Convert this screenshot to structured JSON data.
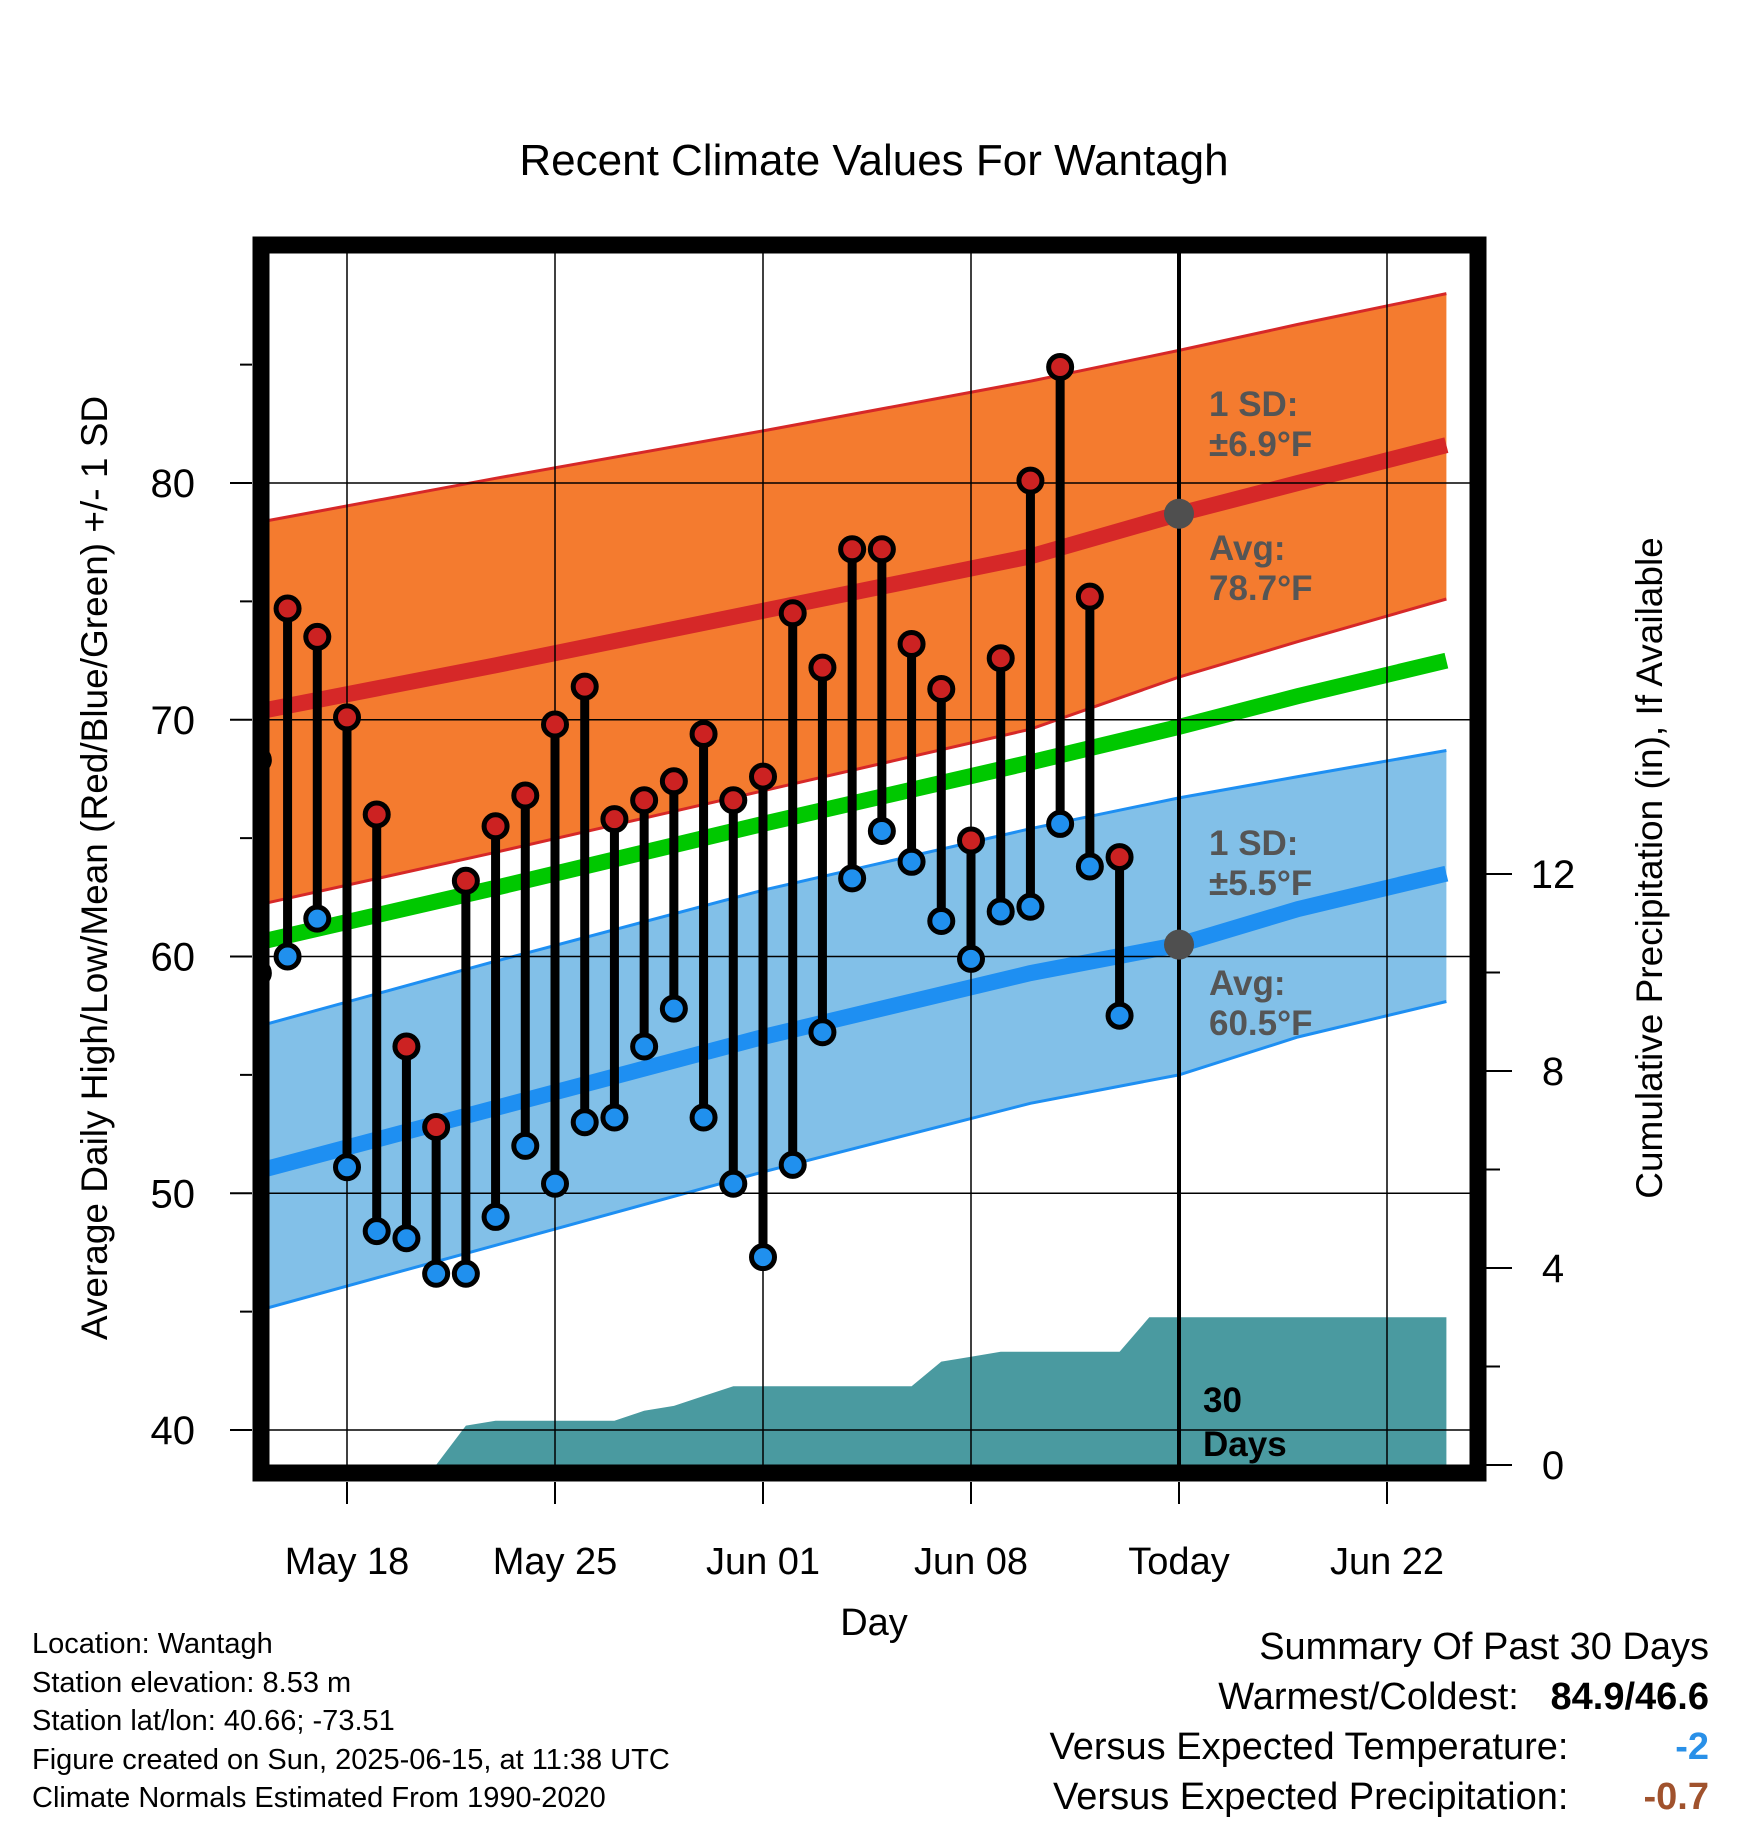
{
  "chart_data": {
    "type": "line",
    "title": "Recent Climate Values For Wantagh",
    "xlabel": "Day",
    "ylabel": "Average Daily High/Low/Mean (Red/Blue/Green) +/- 1 SD",
    "y2label": "Cumulative Precipitation (in), If Available",
    "ylim": [
      39,
      90
    ],
    "y2lim": [
      0,
      24
    ],
    "yticks": [
      "40",
      "50",
      "60",
      "70",
      "80"
    ],
    "y2ticks": [
      "0",
      "4",
      "8",
      "12"
    ],
    "xlim_days": [
      "2025-05-14",
      "2025-06-24"
    ],
    "xticks": [
      {
        "date": "2025-05-18",
        "label": "May 18"
      },
      {
        "date": "2025-05-25",
        "label": "May 25"
      },
      {
        "date": "2025-06-01",
        "label": "Jun 01"
      },
      {
        "date": "2025-06-08",
        "label": "Jun 08"
      },
      {
        "date": "2025-06-15",
        "label": "Today"
      },
      {
        "date": "2025-06-22",
        "label": "Jun 22"
      }
    ],
    "today": "2025-06-15",
    "normals": {
      "dates": [
        "2025-05-14",
        "2025-05-23",
        "2025-06-01",
        "2025-06-10",
        "2025-06-15",
        "2025-06-19",
        "2025-06-24"
      ],
      "avg_high": [
        70.1,
        72.3,
        74.6,
        76.9,
        78.7,
        80.0,
        81.6
      ],
      "avg_high_upper": [
        78.1,
        80.2,
        82.2,
        84.3,
        85.6,
        86.7,
        88.0
      ],
      "avg_high_lower": [
        61.9,
        64.4,
        67.0,
        69.6,
        71.8,
        73.3,
        75.1
      ],
      "avg_mean": [
        60.3,
        62.9,
        65.6,
        68.2,
        69.7,
        71.0,
        72.5
      ],
      "avg_low": [
        50.6,
        53.6,
        56.6,
        59.3,
        60.5,
        62.0,
        63.5
      ],
      "avg_low_upper": [
        56.7,
        59.8,
        62.8,
        65.4,
        66.7,
        67.6,
        68.7
      ],
      "avg_low_lower": [
        44.7,
        47.8,
        50.9,
        53.8,
        55.0,
        56.6,
        58.1
      ]
    },
    "observed": {
      "dates": [
        "2025-05-15",
        "2025-05-16",
        "2025-05-17",
        "2025-05-18",
        "2025-05-19",
        "2025-05-20",
        "2025-05-21",
        "2025-05-22",
        "2025-05-23",
        "2025-05-24",
        "2025-05-25",
        "2025-05-26",
        "2025-05-27",
        "2025-05-28",
        "2025-05-29",
        "2025-05-30",
        "2025-05-31",
        "2025-06-01",
        "2025-06-02",
        "2025-06-03",
        "2025-06-04",
        "2025-06-05",
        "2025-06-06",
        "2025-06-07",
        "2025-06-08",
        "2025-06-09",
        "2025-06-10",
        "2025-06-11",
        "2025-06-12",
        "2025-06-13",
        "2025-06-14"
      ],
      "high": [
        68.3,
        74.7,
        73.5,
        70.1,
        66.0,
        56.2,
        52.8,
        63.2,
        65.5,
        66.8,
        69.8,
        71.4,
        65.8,
        66.6,
        67.4,
        69.4,
        66.6,
        67.6,
        74.5,
        72.2,
        77.2,
        77.2,
        73.2,
        71.3,
        64.9,
        72.6,
        80.1,
        84.9,
        75.2,
        64.2,
        null
      ],
      "low": [
        59.3,
        60.0,
        61.6,
        51.1,
        48.4,
        48.1,
        46.6,
        46.6,
        49.0,
        52.0,
        50.4,
        53.0,
        53.2,
        56.2,
        57.8,
        53.2,
        50.4,
        47.3,
        51.2,
        56.8,
        63.3,
        65.3,
        64.0,
        61.5,
        59.9,
        61.9,
        62.1,
        65.6,
        63.8,
        57.5,
        null
      ]
    },
    "precip_cumulative": {
      "dates": [
        "2025-05-17",
        "2025-05-20",
        "2025-05-21",
        "2025-05-22",
        "2025-05-23",
        "2025-05-27",
        "2025-05-28",
        "2025-05-29",
        "2025-05-30",
        "2025-05-31",
        "2025-06-06",
        "2025-06-07",
        "2025-06-08",
        "2025-06-09",
        "2025-06-10",
        "2025-06-13",
        "2025-06-14",
        "2025-06-24"
      ],
      "values": [
        0,
        0,
        0,
        0.8,
        0.9,
        0.9,
        1.1,
        1.2,
        1.4,
        1.6,
        1.6,
        2.1,
        2.2,
        2.3,
        2.3,
        2.3,
        3.0,
        3.0
      ]
    },
    "annotations": {
      "high_sd_label": "1 SD:",
      "high_sd_value": "±6.9°F",
      "high_avg_label": "Avg:",
      "high_avg_value": "78.7°F",
      "low_sd_label": "1 SD:",
      "low_sd_value": "±5.5°F",
      "low_avg_label": "Avg:",
      "low_avg_value": "60.5°F",
      "days_label_1": "30",
      "days_label_2": "Days"
    },
    "colors": {
      "high_band": "#f47b2f",
      "high_line": "#d62828",
      "low_band": "#82c0e8",
      "low_line": "#1e8ff2",
      "mean_line": "#00c800",
      "precip": "#4a9aa0",
      "high_dot": "#cc2222",
      "low_dot": "#2090ee",
      "avg_dot": "#4f4f4f",
      "annotation": "#555555"
    }
  },
  "footer": {
    "location": "Location: Wantagh",
    "elevation": "Station elevation: 8.53 m",
    "latlon": "Station lat/lon: 40.66; -73.51",
    "created": "Figure created on Sun, 2025-06-15, at 11:38 UTC",
    "normals": "Climate Normals Estimated From 1990-2020"
  },
  "summary": {
    "heading": "Summary Of Past 30 Days",
    "warmest_label": "Warmest/Coldest:",
    "warmest_value": "84.9/46.6",
    "temp_label": "Versus Expected Temperature:",
    "temp_value": "-2",
    "temp_color": "#2990e8",
    "precip_label": "Versus Expected Precipitation:",
    "precip_value": "-0.7",
    "precip_color": "#a0522d"
  }
}
